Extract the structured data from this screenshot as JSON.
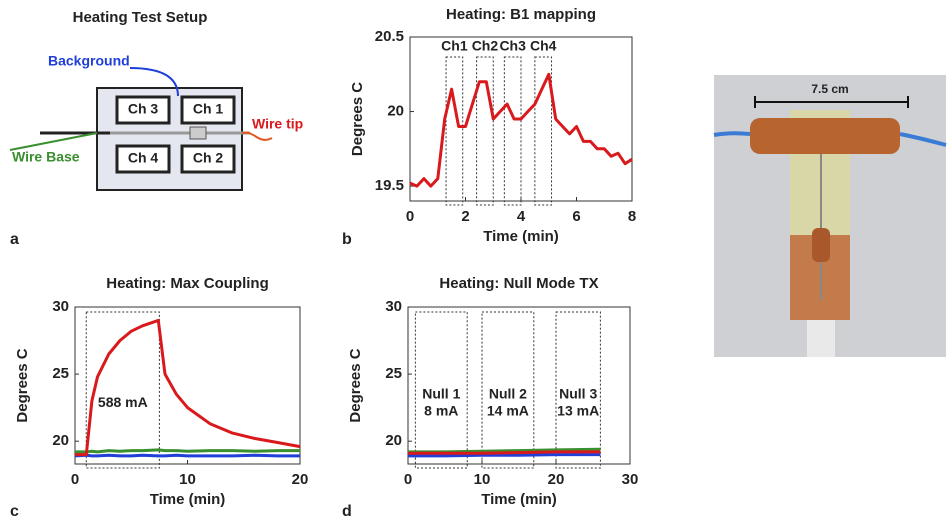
{
  "chart_data": [
    {
      "type": "line",
      "title": "Heating: B1 mapping",
      "x_label": "Time (min)",
      "y_label": "Degrees C",
      "panel": "b",
      "x": [
        0,
        0.25,
        0.5,
        0.75,
        1,
        1.25,
        1.5,
        1.75,
        2,
        2.25,
        2.5,
        2.75,
        3,
        3.25,
        3.5,
        3.75,
        4,
        4.25,
        4.5,
        4.75,
        5,
        5.25,
        5.5,
        5.75,
        6,
        6.25,
        6.5,
        6.75,
        7,
        7.25,
        7.5,
        7.75,
        8
      ],
      "series": [
        {
          "color": "#d9191c",
          "values": [
            19.52,
            19.5,
            19.55,
            19.5,
            19.55,
            19.95,
            20.15,
            19.9,
            19.9,
            20.05,
            20.2,
            20.2,
            19.95,
            20.0,
            20.05,
            19.95,
            19.95,
            20.0,
            20.05,
            20.15,
            20.25,
            19.95,
            19.9,
            19.85,
            19.9,
            19.8,
            19.8,
            19.75,
            19.75,
            19.7,
            19.72,
            19.65,
            19.68
          ]
        }
      ],
      "regions": [
        {
          "label": "Ch1",
          "x": [
            1.3,
            1.9
          ]
        },
        {
          "label": "Ch2",
          "x": [
            2.4,
            3.0
          ]
        },
        {
          "label": "Ch3",
          "x": [
            3.4,
            4.0
          ]
        },
        {
          "label": "Ch4",
          "x": [
            4.5,
            5.1
          ]
        }
      ],
      "xlim": [
        0,
        8
      ],
      "ylim": [
        19.4,
        20.5
      ],
      "xticks": [
        0,
        2,
        4,
        6,
        8
      ],
      "yticks": [
        19.5,
        20,
        20.5
      ]
    },
    {
      "type": "line",
      "title": "Heating: Max Coupling",
      "x_label": "Time (min)",
      "y_label": "Degrees C",
      "panel": "c",
      "x": [
        0,
        1,
        1.5,
        2,
        3,
        4,
        5,
        6,
        7.4,
        8,
        9,
        10,
        12,
        14,
        16,
        18,
        20
      ],
      "series": [
        {
          "color": "#3a8f2e",
          "values": [
            19.2,
            19.2,
            19.25,
            19.2,
            19.3,
            19.25,
            19.3,
            19.3,
            19.35,
            19.3,
            19.3,
            19.25,
            19.3,
            19.3,
            19.25,
            19.3,
            19.3
          ]
        },
        {
          "color": "#1f3fd8",
          "values": [
            18.9,
            18.95,
            18.9,
            18.9,
            18.95,
            18.9,
            18.9,
            18.95,
            18.9,
            18.9,
            18.95,
            18.9,
            18.9,
            18.9,
            18.95,
            18.9,
            18.9
          ]
        },
        {
          "color": "#d9191c",
          "values": [
            19,
            19,
            23,
            24.8,
            26.5,
            27.5,
            28.2,
            28.6,
            29,
            25,
            23.5,
            22.5,
            21.3,
            20.6,
            20.2,
            19.9,
            19.6
          ]
        }
      ],
      "regions": [
        {
          "label": [
            "588 mA"
          ],
          "x": [
            1,
            7.5
          ]
        }
      ],
      "xlim": [
        0,
        20
      ],
      "ylim": [
        18.3,
        30
      ],
      "xticks": [
        0,
        10,
        20
      ],
      "yticks": [
        20,
        25,
        30
      ]
    },
    {
      "type": "line",
      "title": "Heating: Null Mode TX",
      "x_label": "Time (min)",
      "y_label": "Degrees C",
      "panel": "d",
      "x": [
        0,
        5,
        10,
        15,
        20,
        26
      ],
      "series": [
        {
          "color": "#3a8f2e",
          "values": [
            19.2,
            19.2,
            19.25,
            19.3,
            19.35,
            19.4
          ]
        },
        {
          "color": "#1f3fd8",
          "values": [
            18.9,
            18.9,
            18.95,
            18.95,
            19.0,
            19.0
          ]
        },
        {
          "color": "#d9191c",
          "values": [
            19.1,
            19.1,
            19.1,
            19.15,
            19.2,
            19.2
          ]
        }
      ],
      "regions": [
        {
          "label": [
            "Null 1",
            "8 mA"
          ],
          "x": [
            1,
            8
          ]
        },
        {
          "label": [
            "Null 2",
            "14 mA"
          ],
          "x": [
            10,
            17
          ]
        },
        {
          "label": [
            "Null 3",
            "13 mA"
          ],
          "x": [
            20,
            26
          ]
        }
      ],
      "xlim": [
        0,
        30
      ],
      "ylim": [
        18.3,
        30
      ],
      "xticks": [
        0,
        10,
        20,
        30
      ],
      "yticks": [
        20,
        25,
        30
      ]
    }
  ],
  "setup": {
    "title": "Heating Test Setup",
    "panel": "a",
    "background": "Background",
    "wire_tip": "Wire tip",
    "wire_base": "Wire Base",
    "channels": [
      "Ch 3",
      "Ch 1",
      "Ch 4",
      "Ch 2"
    ]
  },
  "photo": {
    "scale": "7.5 cm"
  }
}
